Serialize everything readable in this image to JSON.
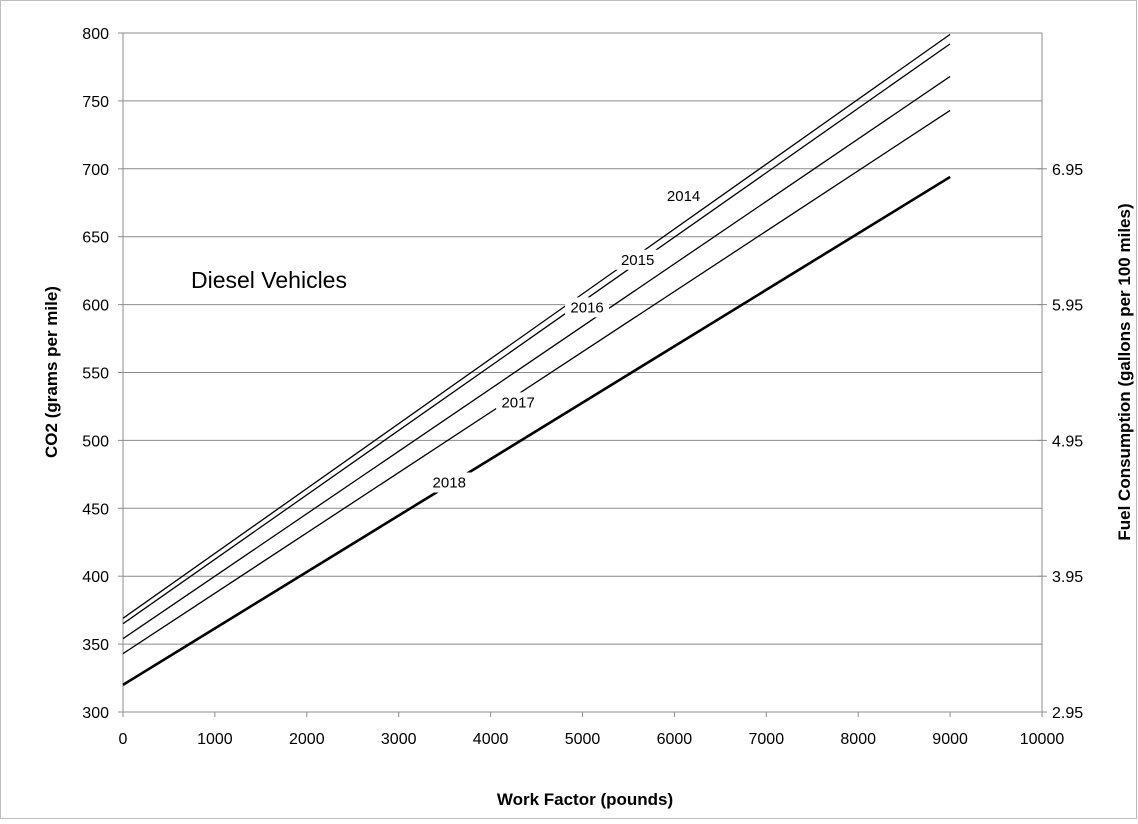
{
  "chart_data": {
    "type": "line",
    "annotation": "Diesel Vehicles",
    "xlabel": "Work Factor (pounds)",
    "ylabel": "CO2 (grams per mile)",
    "y2label": "Fuel Consumption (gallons per 100 miles)",
    "xlim": [
      0,
      10000
    ],
    "ylim": [
      300,
      800
    ],
    "x_ticks": [
      0,
      1000,
      2000,
      3000,
      4000,
      5000,
      6000,
      7000,
      8000,
      9000,
      10000
    ],
    "y_ticks": [
      300,
      350,
      400,
      450,
      500,
      550,
      600,
      650,
      700,
      750,
      800
    ],
    "y2_ticks": [
      "2.95",
      "3.95",
      "4.95",
      "5.95",
      "6.95"
    ],
    "y2_tick_co2": [
      300,
      400,
      500,
      600,
      700
    ],
    "grid": "horizontal",
    "x_tick_labels": [
      "0",
      "1000",
      "2000",
      "3000",
      "4000",
      "5000",
      "6000",
      "7000",
      "8000",
      "9000",
      "10000"
    ],
    "y_tick_labels": [
      "300",
      "350",
      "400",
      "450",
      "500",
      "550",
      "600",
      "650",
      "700",
      "750",
      "800"
    ],
    "series": [
      {
        "name": "2014",
        "x": [
          0,
          9000
        ],
        "y": [
          369,
          799
        ],
        "bold": false,
        "label_x": 6100,
        "label_y": 680
      },
      {
        "name": "2015",
        "x": [
          0,
          9000
        ],
        "y": [
          365,
          792
        ],
        "bold": false,
        "label_x": 5600,
        "label_y": 633
      },
      {
        "name": "2016",
        "x": [
          0,
          9000
        ],
        "y": [
          354,
          768
        ],
        "bold": false,
        "label_x": 5050,
        "label_y": 598
      },
      {
        "name": "2017",
        "x": [
          0,
          9000
        ],
        "y": [
          343,
          743
        ],
        "bold": false,
        "label_x": 4300,
        "label_y": 528
      },
      {
        "name": "2018",
        "x": [
          0,
          9000
        ],
        "y": [
          320,
          694
        ],
        "bold": true,
        "label_x": 3550,
        "label_y": 469
      }
    ]
  }
}
